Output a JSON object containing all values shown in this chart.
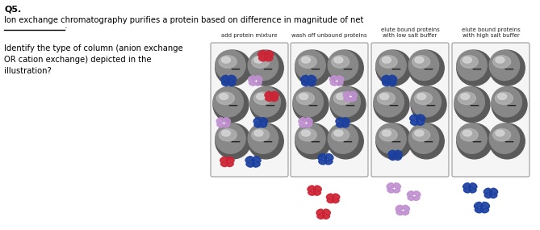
{
  "title": "Q5.",
  "line1": "Ion exchange chromatography purifies a protein based on difference in magnitude of net",
  "line2": "___________.",
  "question": "Identify the type of column (anion exchange\nOR cation exchange) depicted in the\nillustration?",
  "panel_labels": [
    "add protein mixture",
    "wash off unbound proteins",
    "elute bound proteins\nwith low salt buffer",
    "elute bound proteins\nwith high salt buffer"
  ],
  "bg_color": "#ffffff",
  "protein_colors": {
    "red": "#cc2233",
    "blue": "#1a3fa0",
    "purple": "#c090d0"
  },
  "fig_width": 6.69,
  "fig_height": 2.85
}
